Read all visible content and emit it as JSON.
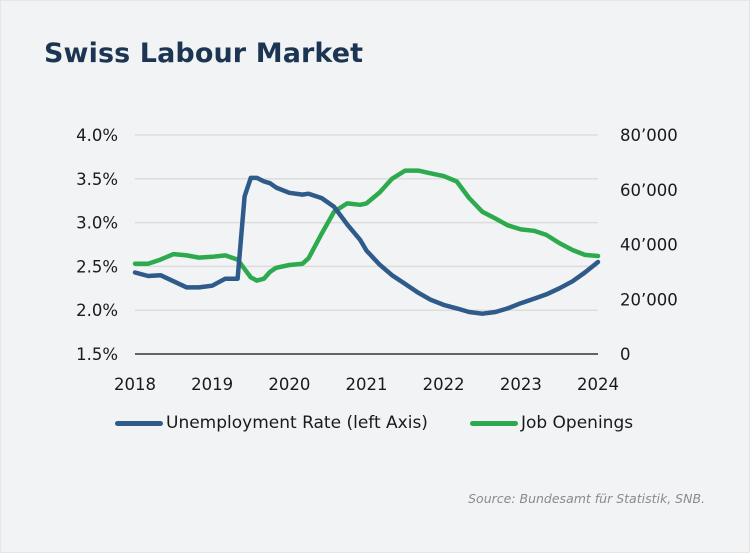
{
  "title": "Swiss Labour Market",
  "source": "Source: Bundesamt für Statistik, SNB.",
  "colors": {
    "background": "#f2f3f5",
    "title": "#1c3553",
    "unemployment": "#2e5b8a",
    "job_openings": "#2eaa4e",
    "grid": "#dcdcdc",
    "axis": "#333333"
  },
  "legend": {
    "unemployment": "Unemployment Rate (left Axis)",
    "job_openings": "Job Openings"
  },
  "chart_data": {
    "type": "line",
    "title": "Swiss Labour Market",
    "xlabel": "",
    "ylabel_left": "Unemployment Rate",
    "ylabel_right": "Job Openings",
    "x_ticks": [
      "2018",
      "2019",
      "2020",
      "2021",
      "2022",
      "2023",
      "2024"
    ],
    "y_left_ticks": [
      "1.5%",
      "2.0%",
      "2.5%",
      "3.0%",
      "3.5%",
      "4.0%"
    ],
    "y_right_ticks": [
      "0",
      "20’000",
      "40’000",
      "60’000",
      "80’000"
    ],
    "ylim_left": [
      1.5,
      4.0
    ],
    "ylim_right": [
      0,
      80000
    ],
    "grid": true,
    "legend_position": "bottom",
    "x": [
      2018.0,
      2018.17,
      2018.33,
      2018.5,
      2018.67,
      2018.83,
      2019.0,
      2019.17,
      2019.33,
      2019.42,
      2019.5,
      2019.58,
      2019.67,
      2019.75,
      2019.83,
      2020.0,
      2020.17,
      2020.25,
      2020.42,
      2020.58,
      2020.75,
      2020.92,
      2021.0,
      2021.17,
      2021.33,
      2021.5,
      2021.67,
      2021.83,
      2022.0,
      2022.17,
      2022.33,
      2022.5,
      2022.67,
      2022.83,
      2023.0,
      2023.17,
      2023.33,
      2023.5,
      2023.67,
      2023.83,
      2024.0
    ],
    "series": [
      {
        "name": "Unemployment Rate (left Axis)",
        "axis": "left",
        "values": [
          2.43,
          2.39,
          2.4,
          2.33,
          2.26,
          2.26,
          2.28,
          2.36,
          2.36,
          3.3,
          3.51,
          3.51,
          3.47,
          3.45,
          3.4,
          3.34,
          3.32,
          3.33,
          3.28,
          3.18,
          2.98,
          2.8,
          2.68,
          2.52,
          2.4,
          2.3,
          2.2,
          2.12,
          2.06,
          2.02,
          1.98,
          1.96,
          1.98,
          2.02,
          2.08,
          2.13,
          2.18,
          2.25,
          2.33,
          2.43,
          2.55
        ]
      },
      {
        "name": "Job Openings",
        "axis": "right",
        "values": [
          33000,
          33000,
          34500,
          36500,
          36000,
          35200,
          35500,
          36000,
          34500,
          31000,
          28000,
          26800,
          27500,
          30000,
          31500,
          32500,
          33000,
          35000,
          44000,
          52000,
          55000,
          54500,
          55000,
          59000,
          64000,
          67000,
          67000,
          66000,
          65000,
          63000,
          57000,
          52000,
          49500,
          47000,
          45500,
          45000,
          43500,
          40500,
          38000,
          36200,
          35800
        ]
      }
    ]
  }
}
